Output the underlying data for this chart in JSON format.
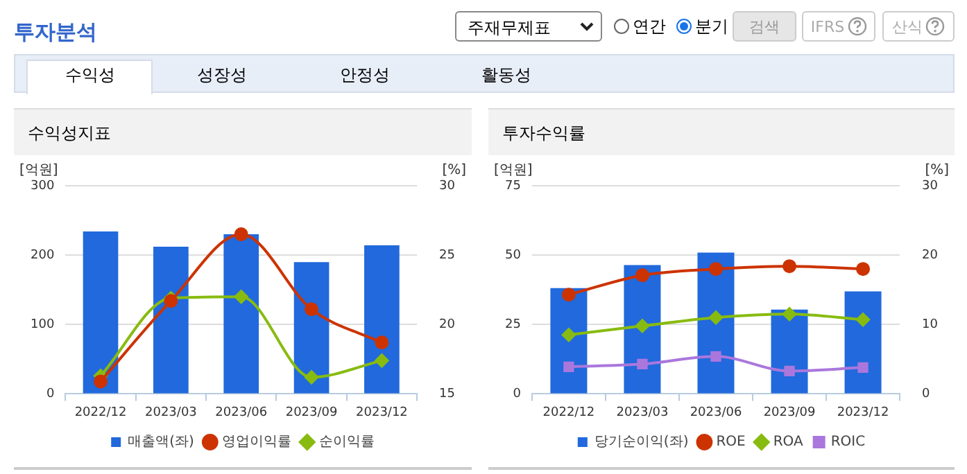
{
  "chart_data": [
    {
      "type": "bar",
      "title": "수익성지표",
      "ylabel": "[억원]",
      "y2label": "[%]",
      "categories": [
        "2022/12",
        "2023/03",
        "2023/06",
        "2023/09",
        "2023/12"
      ],
      "series": [
        {
          "name": "매출액(좌)",
          "color": "#2169dc",
          "values": [
            234,
            212,
            230,
            190,
            214
          ]
        },
        {
          "name": "영업이익률",
          "type": "line",
          "axis": "y2",
          "marker": "circle",
          "color": "#cc3300",
          "values": [
            15.9,
            21.7,
            26.5,
            21.1,
            18.7
          ]
        },
        {
          "name": "순이익률",
          "type": "line",
          "axis": "y2",
          "marker": "diamond",
          "color": "#88bb11",
          "values": [
            16.3,
            21.9,
            22.0,
            16.2,
            17.4
          ]
        }
      ],
      "ylim": [
        0,
        300
      ],
      "yticks": [
        0,
        100,
        200,
        300
      ],
      "y2lim": [
        15,
        30
      ],
      "y2ticks": [
        15,
        20,
        25,
        30
      ],
      "grid": "y",
      "legend": "bottom",
      "annotations": [
        "투자분석",
        "주재무제표",
        "연간",
        "분기",
        "검색",
        "IFRS",
        "산식",
        "수익성",
        "성장성",
        "안정성",
        "활동성"
      ]
    },
    {
      "type": "bar",
      "title": "투자수익률",
      "ylabel": "[억원]",
      "y2label": "[%]",
      "categories": [
        "2022/12",
        "2023/03",
        "2023/06",
        "2023/09",
        "2023/12"
      ],
      "series": [
        {
          "name": "당기순이익(좌)",
          "color": "#2169dc",
          "values": [
            38.1,
            46.4,
            50.9,
            30.4,
            36.9
          ]
        },
        {
          "name": "ROE",
          "type": "line",
          "axis": "y2",
          "marker": "circle",
          "color": "#cc3300",
          "values": [
            14.3,
            17.1,
            18.0,
            18.4,
            18.0
          ]
        },
        {
          "name": "ROA",
          "type": "line",
          "axis": "y2",
          "marker": "diamond",
          "color": "#88bb11",
          "values": [
            8.5,
            9.8,
            11.0,
            11.5,
            10.7
          ]
        },
        {
          "name": "ROIC",
          "type": "line",
          "axis": "y2",
          "marker": "square",
          "color": "#aa77dd",
          "values": [
            3.9,
            4.3,
            5.4,
            3.3,
            3.8
          ]
        }
      ],
      "ylim": [
        0,
        75
      ],
      "yticks": [
        0,
        25,
        50,
        75
      ],
      "y2lim": [
        0,
        30
      ],
      "y2ticks": [
        0,
        10,
        20,
        30
      ],
      "grid": "y",
      "legend": "bottom"
    }
  ]
}
